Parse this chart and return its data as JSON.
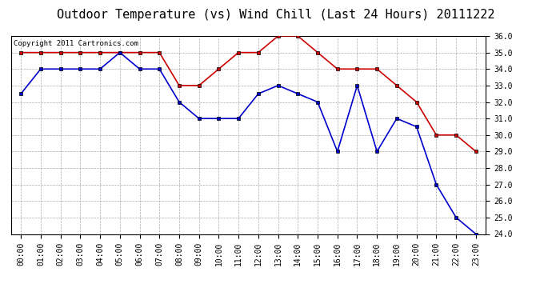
{
  "title": "Outdoor Temperature (vs) Wind Chill (Last 24 Hours) 20111222",
  "copyright_text": "Copyright 2011 Cartronics.com",
  "x_labels": [
    "00:00",
    "01:00",
    "02:00",
    "03:00",
    "04:00",
    "05:00",
    "06:00",
    "07:00",
    "08:00",
    "09:00",
    "10:00",
    "11:00",
    "12:00",
    "13:00",
    "14:00",
    "15:00",
    "16:00",
    "17:00",
    "18:00",
    "19:00",
    "20:00",
    "21:00",
    "22:00",
    "23:00"
  ],
  "temp_red": [
    35.0,
    35.0,
    35.0,
    35.0,
    35.0,
    35.0,
    35.0,
    35.0,
    33.0,
    33.0,
    34.0,
    35.0,
    35.0,
    36.0,
    36.0,
    35.0,
    34.0,
    34.0,
    34.0,
    33.0,
    32.0,
    30.0,
    30.0,
    29.0
  ],
  "wind_chill_blue": [
    32.5,
    34.0,
    34.0,
    34.0,
    34.0,
    35.0,
    34.0,
    34.0,
    32.0,
    31.0,
    31.0,
    31.0,
    32.5,
    33.0,
    32.5,
    32.0,
    29.0,
    33.0,
    29.0,
    31.0,
    30.5,
    27.0,
    25.0,
    24.0
  ],
  "ylim": [
    24.0,
    36.0
  ],
  "yticks": [
    24.0,
    25.0,
    26.0,
    27.0,
    28.0,
    29.0,
    30.0,
    31.0,
    32.0,
    33.0,
    34.0,
    35.0,
    36.0
  ],
  "red_color": "#cc0000",
  "blue_color": "#0000cc",
  "bg_color": "#ffffff",
  "grid_color": "#aaaaaa",
  "title_fontsize": 11,
  "copyright_fontsize": 6.5,
  "tick_fontsize": 7,
  "ytick_fontsize": 7
}
